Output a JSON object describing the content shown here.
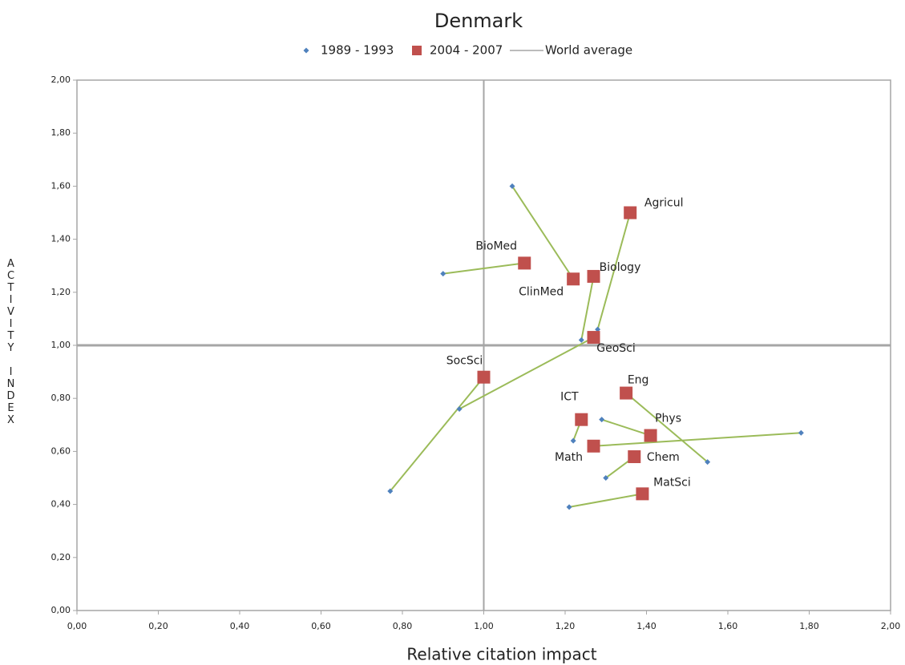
{
  "chart_data": {
    "type": "scatter",
    "title": "Denmark",
    "x_label": "Relative citation impact",
    "y_label": "ACTIVITY INDEX",
    "point_labels": [
      "BioMed",
      "ClinMed",
      "Biology",
      "Agricul",
      "GeoSci",
      "SocSci",
      "Eng",
      "ICT",
      "Phys",
      "Math",
      "Chem",
      "MatSci"
    ],
    "series": [
      {
        "name": "1989 - 1993",
        "color": "#4f81bd",
        "marker": "diamond",
        "x": [
          0.9,
          1.07,
          1.24,
          1.28,
          0.94,
          0.77,
          1.55,
          1.22,
          1.29,
          1.78,
          1.3,
          1.21
        ],
        "y": [
          1.27,
          1.6,
          1.02,
          1.06,
          0.76,
          0.45,
          0.56,
          0.64,
          0.72,
          0.67,
          0.5,
          0.39
        ]
      },
      {
        "name": "2004 - 2007",
        "color": "#c0504d",
        "marker": "square",
        "x": [
          1.1,
          1.22,
          1.27,
          1.36,
          1.27,
          1.0,
          1.35,
          1.24,
          1.41,
          1.27,
          1.37,
          1.39
        ],
        "y": [
          1.31,
          1.25,
          1.26,
          1.5,
          1.03,
          0.88,
          0.82,
          0.72,
          0.66,
          0.62,
          0.58,
          0.44
        ]
      }
    ],
    "connector_color": "#9bbb59",
    "reference": {
      "name": "World average",
      "color": "#a6a6a6",
      "x": 1,
      "y": 1
    },
    "xlim": [
      0,
      2
    ],
    "ylim": [
      0,
      2
    ],
    "xticks": [
      {
        "value": 0,
        "label": "0,00"
      },
      {
        "value": 0.2,
        "label": "0,20"
      },
      {
        "value": 0.4,
        "label": "0,40"
      },
      {
        "value": 0.6,
        "label": "0,60"
      },
      {
        "value": 0.8,
        "label": "0,80"
      },
      {
        "value": 1,
        "label": "1,00"
      },
      {
        "value": 1.2,
        "label": "1,20"
      },
      {
        "value": 1.4,
        "label": "1,40"
      },
      {
        "value": 1.6,
        "label": "1,60"
      },
      {
        "value": 1.8,
        "label": "1,80"
      },
      {
        "value": 2,
        "label": "2,00"
      }
    ],
    "yticks": [
      {
        "value": 0,
        "label": "0,00"
      },
      {
        "value": 0.2,
        "label": "0,20"
      },
      {
        "value": 0.4,
        "label": "0,40"
      },
      {
        "value": 0.6,
        "label": "0,60"
      },
      {
        "value": 0.8,
        "label": "0,80"
      },
      {
        "value": 1,
        "label": "1,00"
      },
      {
        "value": 1.2,
        "label": "1,20"
      },
      {
        "value": 1.4,
        "label": "1,40"
      },
      {
        "value": 1.6,
        "label": "1,60"
      },
      {
        "value": 1.8,
        "label": "1,80"
      },
      {
        "value": 2,
        "label": "2,00"
      }
    ]
  }
}
